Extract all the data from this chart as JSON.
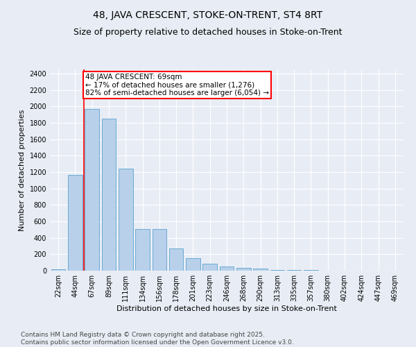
{
  "title": "48, JAVA CRESCENT, STOKE-ON-TRENT, ST4 8RT",
  "subtitle": "Size of property relative to detached houses in Stoke-on-Trent",
  "xlabel": "Distribution of detached houses by size in Stoke-on-Trent",
  "ylabel": "Number of detached properties",
  "categories": [
    "22sqm",
    "44sqm",
    "67sqm",
    "89sqm",
    "111sqm",
    "134sqm",
    "156sqm",
    "178sqm",
    "201sqm",
    "223sqm",
    "246sqm",
    "268sqm",
    "290sqm",
    "313sqm",
    "335sqm",
    "357sqm",
    "380sqm",
    "402sqm",
    "424sqm",
    "447sqm",
    "469sqm"
  ],
  "values": [
    20,
    1170,
    1970,
    1850,
    1240,
    510,
    510,
    270,
    155,
    85,
    50,
    30,
    28,
    10,
    5,
    5,
    3,
    3,
    2,
    2,
    2
  ],
  "bar_color": "#b8d0ea",
  "bar_edge_color": "#6aaad4",
  "vline_color": "red",
  "vline_bar_index": 2,
  "annotation_box_text": "48 JAVA CRESCENT: 69sqm\n← 17% of detached houses are smaller (1,276)\n82% of semi-detached houses are larger (6,054) →",
  "annotation_box_color": "red",
  "ylim": [
    0,
    2450
  ],
  "yticks": [
    0,
    200,
    400,
    600,
    800,
    1000,
    1200,
    1400,
    1600,
    1800,
    2000,
    2200,
    2400
  ],
  "bg_color": "#e8edf5",
  "plot_bg_color": "#e8edf5",
  "footer_line1": "Contains HM Land Registry data © Crown copyright and database right 2025.",
  "footer_line2": "Contains public sector information licensed under the Open Government Licence v3.0.",
  "title_fontsize": 10,
  "subtitle_fontsize": 9,
  "axis_label_fontsize": 8,
  "tick_fontsize": 7,
  "annotation_fontsize": 7.5,
  "footer_fontsize": 6.5
}
